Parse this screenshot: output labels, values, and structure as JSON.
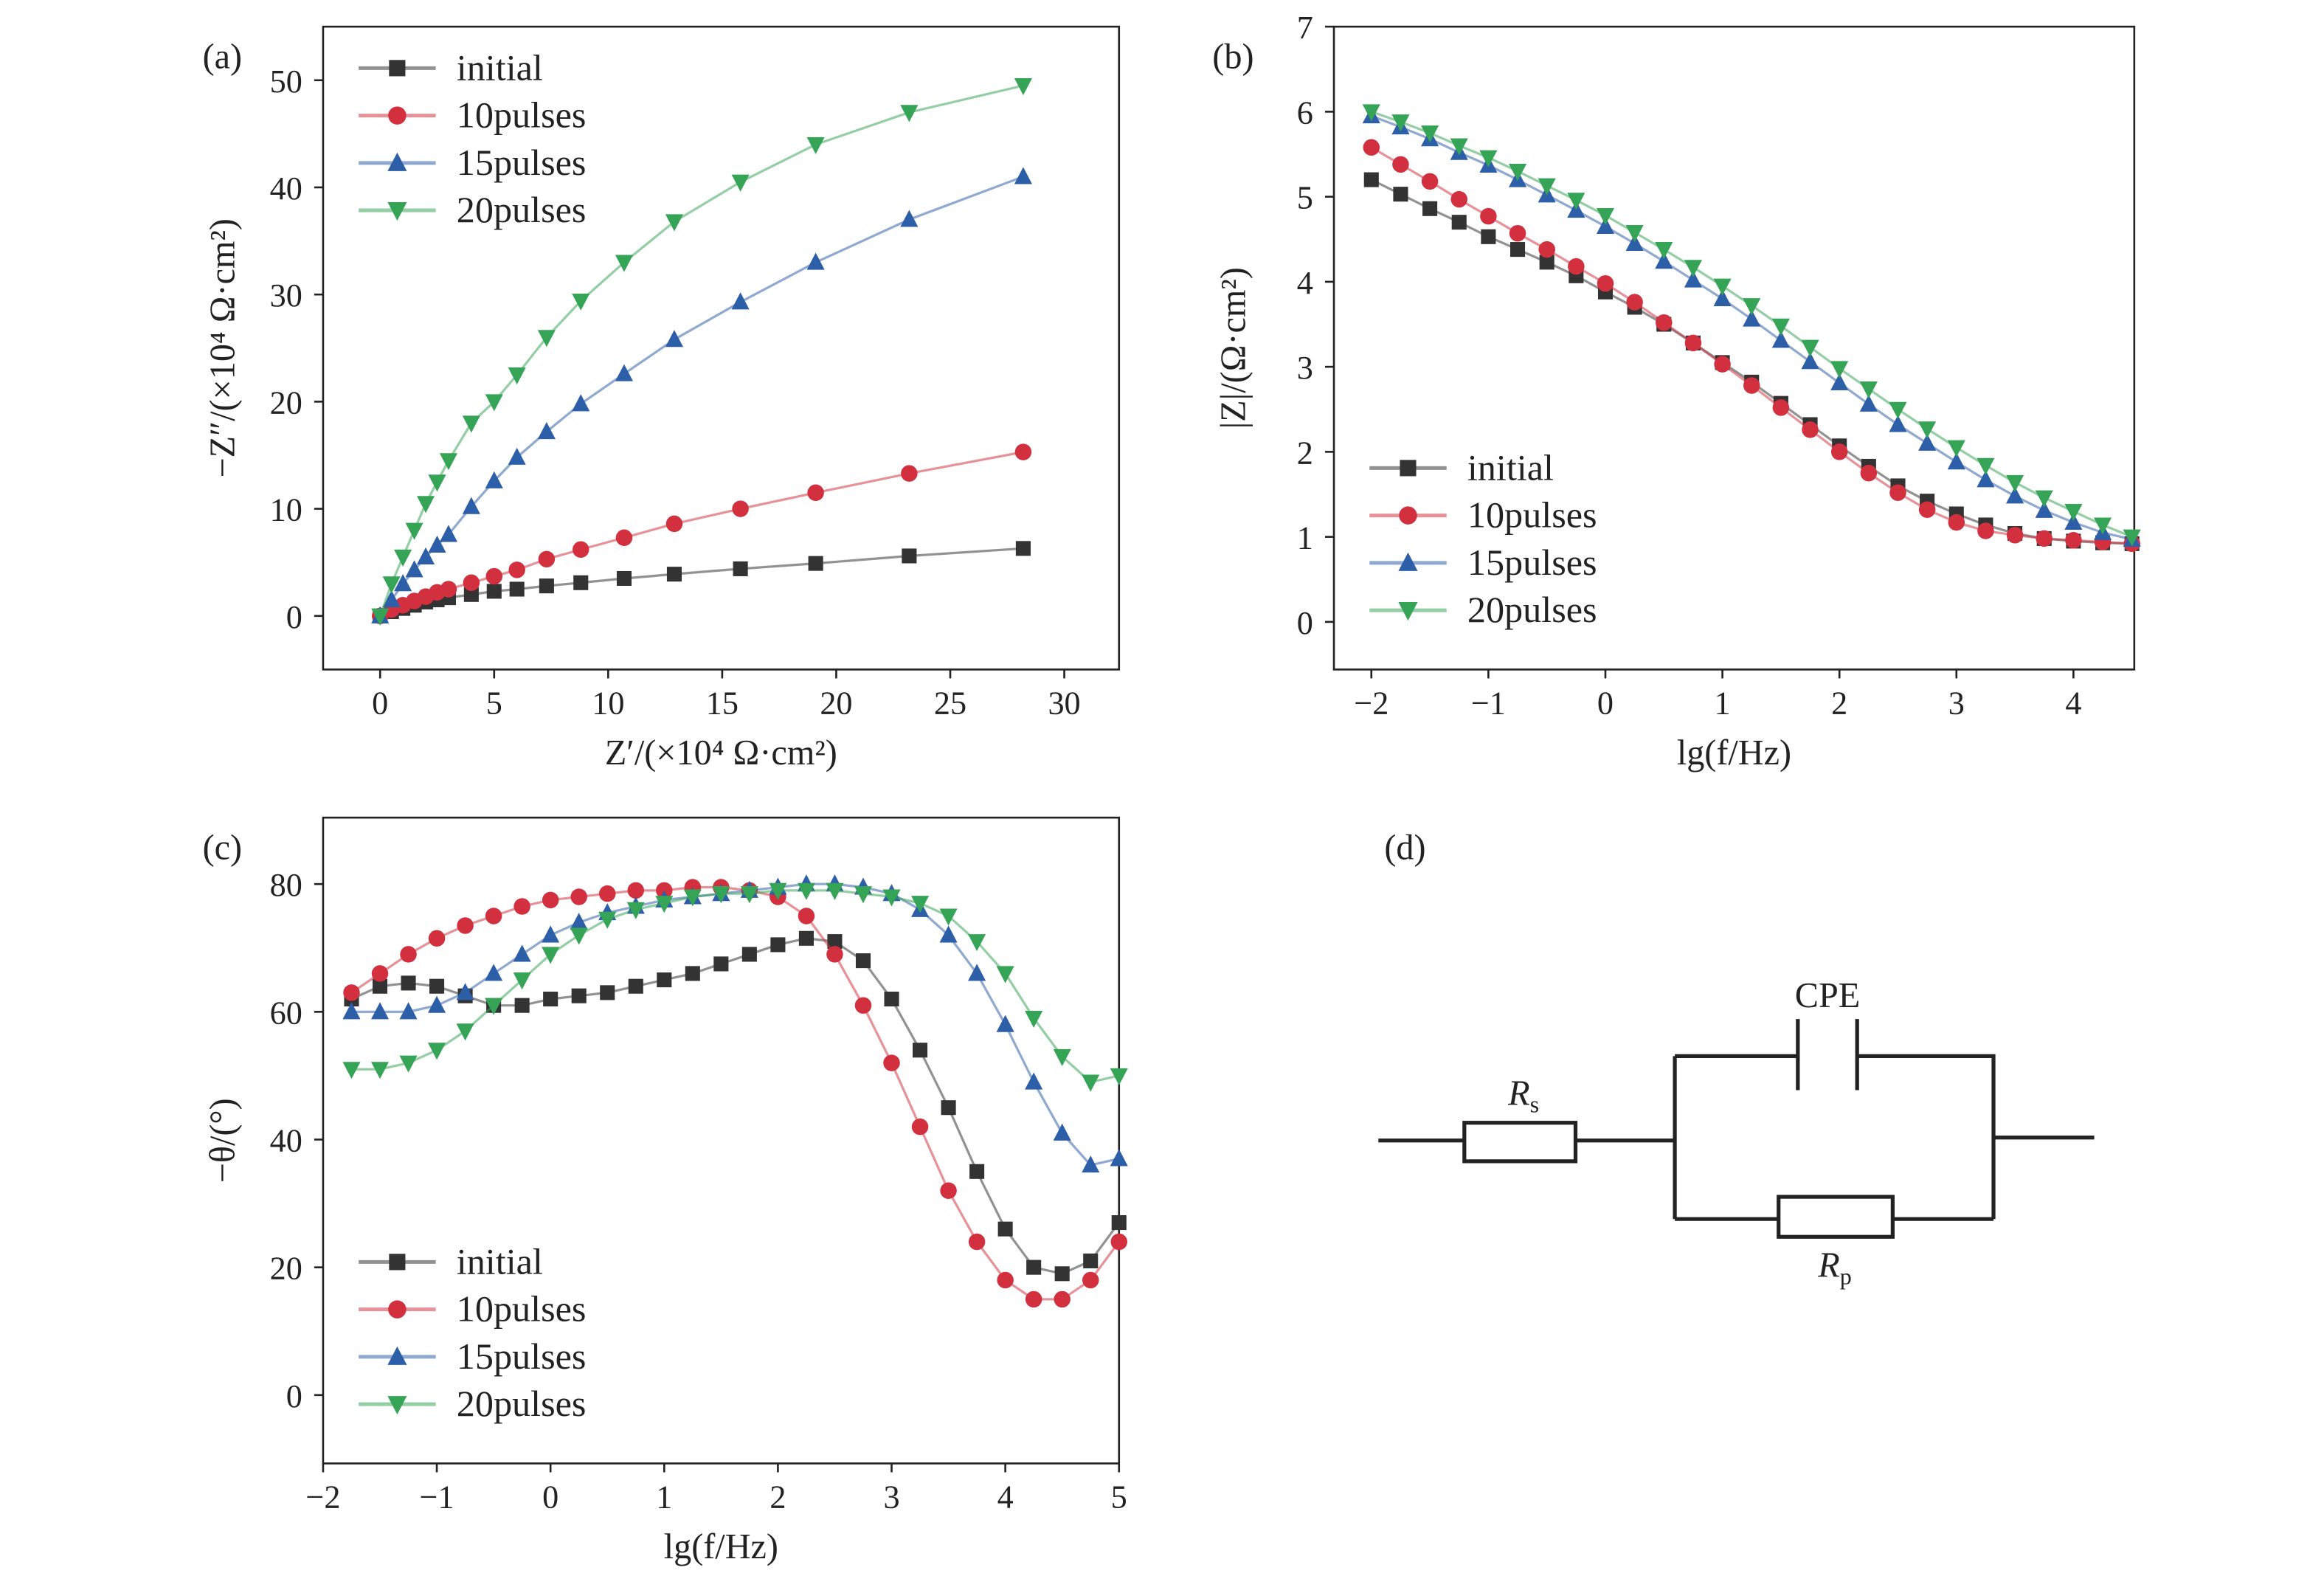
{
  "chart_data": [
    {
      "type": "line",
      "label": "(a)",
      "xlabel": "Z′/(×10⁴ Ω·cm²)",
      "ylabel": "−Z″/(×10⁴ Ω·cm²)",
      "xlim": [
        -2.5,
        32.4
      ],
      "ylim": [
        -5,
        55
      ],
      "xticks": [
        0,
        5,
        10,
        15,
        20,
        25,
        30
      ],
      "yticks": [
        0,
        10,
        20,
        30,
        40,
        50
      ],
      "legend": "upper left",
      "x": [
        0,
        0.5,
        1,
        1.5,
        2,
        2.5,
        3,
        4,
        5,
        6,
        7.3,
        8.8,
        10.7,
        12.9,
        15.8,
        19.1,
        23.2,
        28.2
      ],
      "series": [
        {
          "name": "initial",
          "color": "#333333",
          "marker": "square",
          "values": [
            0,
            0.4,
            0.7,
            1,
            1.3,
            1.5,
            1.7,
            2,
            2.3,
            2.5,
            2.8,
            3.1,
            3.5,
            3.9,
            4.4,
            4.9,
            5.6,
            6.3
          ]
        },
        {
          "name": "10pulses",
          "color": "#d2303e",
          "marker": "circle",
          "values": [
            0,
            0.6,
            1,
            1.4,
            1.8,
            2.2,
            2.5,
            3.1,
            3.7,
            4.3,
            5.3,
            6.2,
            7.3,
            8.6,
            10,
            11.5,
            13.3,
            15.3
          ]
        },
        {
          "name": "15pulses",
          "color": "#2d5ea8",
          "marker": "triangle-up",
          "values": [
            0,
            1.5,
            3,
            4.3,
            5.5,
            6.6,
            7.6,
            10.2,
            12.6,
            14.8,
            17.2,
            19.8,
            22.6,
            25.8,
            29.3,
            33,
            37,
            41
          ]
        },
        {
          "name": "20pulses",
          "color": "#36a457",
          "marker": "triangle-down",
          "values": [
            0,
            3,
            5.5,
            8,
            10.5,
            12.5,
            14.5,
            18,
            20,
            22.5,
            26,
            29.4,
            33,
            36.8,
            40.5,
            44,
            47,
            49.5
          ]
        }
      ]
    },
    {
      "type": "line",
      "label": "(b)",
      "xlabel": "lg(f/Hz)",
      "ylabel": "|Z|/(Ω·cm²)",
      "xlim": [
        -2.32,
        4.52
      ],
      "ylim": [
        -0.56,
        7
      ],
      "xticks": [
        {
          "value": -2,
          "label": "−2"
        },
        {
          "value": -1,
          "label": "−1"
        },
        0,
        1,
        2,
        3,
        4
      ],
      "yticks": [
        0,
        1,
        2,
        3,
        4,
        5,
        6,
        7
      ],
      "legend": "lower left",
      "x": [
        -2,
        -1.75,
        -1.5,
        -1.25,
        -1,
        -0.75,
        -0.5,
        -0.25,
        0,
        0.25,
        0.5,
        0.75,
        1,
        1.25,
        1.5,
        1.75,
        2,
        2.25,
        2.5,
        2.75,
        3,
        3.25,
        3.5,
        3.75,
        4,
        4.25,
        4.5
      ],
      "series": [
        {
          "name": "initial",
          "color": "#333333",
          "marker": "square",
          "values": [
            5.2,
            5.03,
            4.86,
            4.7,
            4.53,
            4.38,
            4.23,
            4.07,
            3.88,
            3.7,
            3.5,
            3.28,
            3.05,
            2.82,
            2.57,
            2.32,
            2.07,
            1.83,
            1.6,
            1.42,
            1.27,
            1.14,
            1.04,
            0.98,
            0.95,
            0.93,
            0.92
          ]
        },
        {
          "name": "10pulses",
          "color": "#d2303e",
          "marker": "circle",
          "values": [
            5.58,
            5.38,
            5.18,
            4.97,
            4.77,
            4.57,
            4.38,
            4.18,
            3.98,
            3.76,
            3.52,
            3.28,
            3.03,
            2.78,
            2.52,
            2.26,
            2,
            1.75,
            1.52,
            1.32,
            1.17,
            1.07,
            1.02,
            0.98,
            0.96,
            0.94,
            0.92
          ]
        },
        {
          "name": "15pulses",
          "color": "#2d5ea8",
          "marker": "triangle-up",
          "values": [
            5.95,
            5.82,
            5.68,
            5.52,
            5.37,
            5.2,
            5.02,
            4.84,
            4.65,
            4.45,
            4.24,
            4.02,
            3.8,
            3.56,
            3.31,
            3.06,
            2.81,
            2.56,
            2.32,
            2.1,
            1.88,
            1.67,
            1.48,
            1.31,
            1.17,
            1.05,
            0.97
          ]
        },
        {
          "name": "20pulses",
          "color": "#36a457",
          "marker": "triangle-down",
          "values": [
            6,
            5.88,
            5.75,
            5.6,
            5.46,
            5.3,
            5.13,
            4.96,
            4.78,
            4.58,
            4.38,
            4.17,
            3.95,
            3.72,
            3.48,
            3.23,
            2.98,
            2.74,
            2.5,
            2.27,
            2.05,
            1.84,
            1.64,
            1.46,
            1.3,
            1.14,
            1
          ]
        }
      ]
    },
    {
      "type": "line",
      "label": "(c)",
      "xlabel": "lg(f/Hz)",
      "ylabel": "−θ/(°)",
      "xlim": [
        -2,
        5
      ],
      "ylim": [
        -10.7,
        90.4
      ],
      "xticks": [
        {
          "value": -2,
          "label": "−2"
        },
        {
          "value": -1,
          "label": "−1"
        },
        0,
        1,
        2,
        3,
        4,
        5
      ],
      "yticks": [
        0,
        20,
        40,
        60,
        80
      ],
      "legend": "lower left",
      "x": [
        -1.75,
        -1.5,
        -1.25,
        -1,
        -0.75,
        -0.5,
        -0.25,
        0,
        0.25,
        0.5,
        0.75,
        1,
        1.25,
        1.5,
        1.75,
        2,
        2.25,
        2.5,
        2.75,
        3,
        3.25,
        3.5,
        3.75,
        4,
        4.25,
        4.5,
        4.75,
        5
      ],
      "series": [
        {
          "name": "initial",
          "color": "#333333",
          "marker": "square",
          "values": [
            62,
            64,
            64.5,
            64,
            62.5,
            61,
            61,
            62,
            62.5,
            63,
            64,
            65,
            66,
            67.5,
            69,
            70.5,
            71.5,
            71,
            68,
            62,
            54,
            45,
            35,
            26,
            20,
            19,
            21,
            27
          ]
        },
        {
          "name": "10pulses",
          "color": "#d2303e",
          "marker": "circle",
          "values": [
            63,
            66,
            69,
            71.5,
            73.5,
            75,
            76.5,
            77.5,
            78,
            78.5,
            79,
            79,
            79.5,
            79.5,
            79,
            78,
            75,
            69,
            61,
            52,
            42,
            32,
            24,
            18,
            15,
            15,
            18,
            24
          ]
        },
        {
          "name": "15pulses",
          "color": "#2d5ea8",
          "marker": "triangle-up",
          "values": [
            60,
            60,
            60,
            61,
            63,
            66,
            69,
            72,
            74,
            75.5,
            76.5,
            77.5,
            78,
            78.5,
            79,
            79.5,
            80,
            80,
            79.5,
            78.5,
            76,
            72,
            66,
            58,
            49,
            41,
            36,
            37
          ]
        },
        {
          "name": "20pulses",
          "color": "#36a457",
          "marker": "triangle-down",
          "values": [
            51,
            51,
            52,
            54,
            57,
            61,
            65,
            69,
            72,
            74.5,
            76,
            77,
            78,
            78.5,
            78.5,
            79,
            79,
            79,
            78.5,
            78,
            77,
            75,
            71,
            66,
            59,
            53,
            49,
            50
          ]
        }
      ]
    }
  ],
  "circuit": {
    "label": "(d)",
    "cpe": "CPE",
    "rs": {
      "symbol": "R",
      "subscript": "s"
    },
    "rp": {
      "symbol": "R",
      "subscript": "p"
    }
  }
}
